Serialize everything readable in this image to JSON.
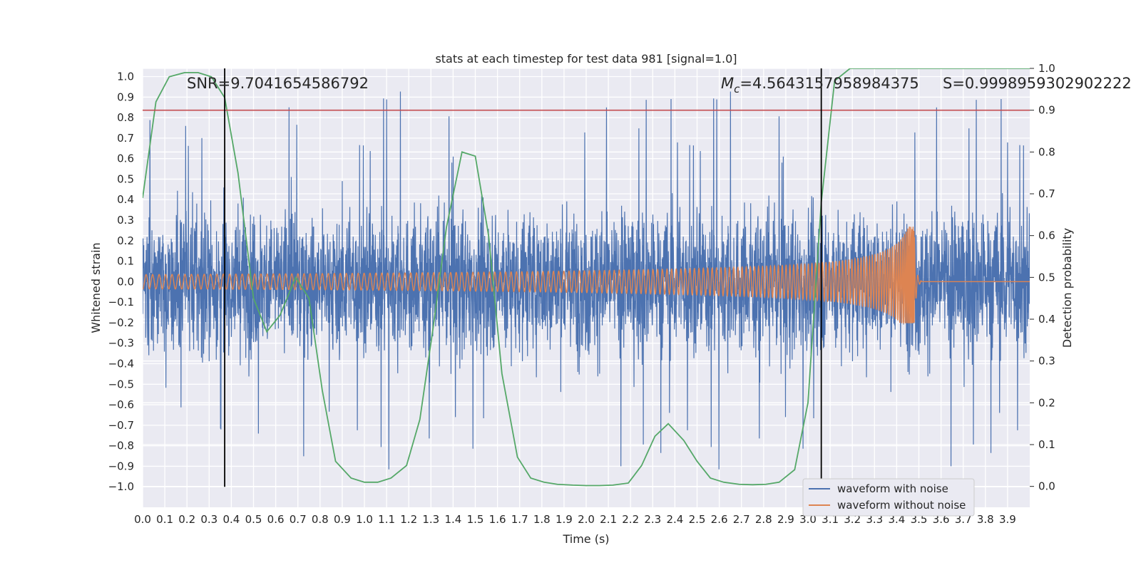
{
  "chart_data": {
    "type": "line",
    "title": "stats at each timestep for test data 981 [signal=1.0]",
    "xlabel": "Time (s)",
    "ylabel": "Whitened strain",
    "y2label": "Detection probability",
    "xlim": [
      0.0,
      4.0
    ],
    "ylim": [
      -1.1,
      1.04
    ],
    "y2lim": [
      -0.05,
      1.0
    ],
    "xticks": [
      "0.0",
      "0.1",
      "0.2",
      "0.3",
      "0.4",
      "0.5",
      "0.6",
      "0.7",
      "0.8",
      "0.9",
      "1.0",
      "1.1",
      "1.2",
      "1.3",
      "1.4",
      "1.5",
      "1.6",
      "1.7",
      "1.8",
      "1.9",
      "2.0",
      "2.1",
      "2.2",
      "2.3",
      "2.4",
      "2.5",
      "2.6",
      "2.7",
      "2.8",
      "2.9",
      "3.0",
      "3.1",
      "3.2",
      "3.3",
      "3.4",
      "3.5",
      "3.6",
      "3.7",
      "3.8",
      "3.9"
    ],
    "yticks": [
      "1.0",
      "0.9",
      "0.8",
      "0.7",
      "0.6",
      "0.5",
      "0.4",
      "0.3",
      "0.2",
      "0.1",
      "0.0",
      "-0.1",
      "-0.2",
      "-0.3",
      "-0.4",
      "-0.5",
      "-0.6",
      "-0.7",
      "-0.8",
      "-0.9",
      "-1.0"
    ],
    "y2ticks": [
      "1.0",
      "0.9",
      "0.8",
      "0.7",
      "0.6",
      "0.5",
      "0.4",
      "0.3",
      "0.2",
      "0.1",
      "0.0"
    ],
    "grid": true,
    "legend_position": "lower-right",
    "colors": {
      "noise": "#4c72b0",
      "clean": "#dd8452",
      "prob": "#55a868",
      "threshold": "#c44e52",
      "marker": "#000000",
      "background": "#eaeaf2",
      "grid": "#ffffff"
    },
    "series": [
      {
        "name": "waveform with noise",
        "axis": "left",
        "style": "dense noisy oscillation, amplitude mostly within about ±0.6 with peaks near ±0.95"
      },
      {
        "name": "waveform without noise",
        "axis": "left",
        "style": "chirp rising in frequency and amplitude from ±0.035 at 0 s to about +0.27/-0.20 at 3.48 s, then flat at 0.0"
      },
      {
        "axis": "right",
        "x": [
          0.0,
          0.06,
          0.12,
          0.19,
          0.25,
          0.31,
          0.37,
          0.43,
          0.5,
          0.56,
          0.62,
          0.69,
          0.75,
          0.81,
          0.87,
          0.94,
          1.0,
          1.06,
          1.12,
          1.19,
          1.25,
          1.31,
          1.37,
          1.44,
          1.5,
          1.56,
          1.62,
          1.69,
          1.75,
          1.81,
          1.87,
          1.94,
          2.0,
          2.06,
          2.12,
          2.19,
          2.25,
          2.31,
          2.37,
          2.44,
          2.5,
          2.56,
          2.62,
          2.69,
          2.75,
          2.81,
          2.87,
          2.94,
          3.0,
          3.06,
          3.12,
          3.19,
          3.25,
          3.31,
          3.37,
          3.44,
          3.5,
          3.56,
          3.62,
          3.69,
          3.75,
          3.81,
          3.87,
          3.94,
          4.0
        ],
        "y": [
          0.69,
          0.92,
          0.98,
          0.99,
          0.99,
          0.98,
          0.93,
          0.75,
          0.45,
          0.37,
          0.41,
          0.5,
          0.45,
          0.23,
          0.06,
          0.02,
          0.01,
          0.01,
          0.02,
          0.05,
          0.16,
          0.38,
          0.62,
          0.8,
          0.79,
          0.6,
          0.27,
          0.07,
          0.02,
          0.01,
          0.005,
          0.003,
          0.002,
          0.002,
          0.003,
          0.008,
          0.05,
          0.12,
          0.15,
          0.11,
          0.06,
          0.02,
          0.01,
          0.005,
          0.004,
          0.005,
          0.01,
          0.04,
          0.2,
          0.68,
          0.97,
          1.0,
          1.0,
          1.0,
          1.0,
          1.0,
          1.0,
          1.0,
          1.0,
          1.0,
          1.0,
          1.0,
          1.0,
          1.0,
          1.0
        ]
      }
    ],
    "threshold_right": 0.9,
    "vlines_x": [
      0.37,
      3.06
    ],
    "annotations": {
      "snr": "SNR=9.7041654586792",
      "mc_symbol": "M",
      "mc_sub": "c",
      "mc_value": "=4.5643157958984375",
      "s": "S=0.9998959302902222"
    }
  }
}
